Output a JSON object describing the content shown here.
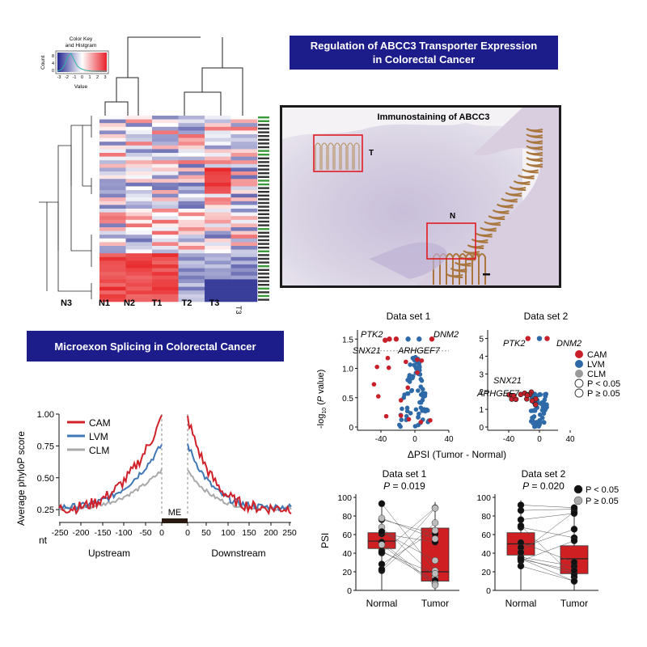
{
  "banners": {
    "abcc3": "Regulation of ABCC3 Transporter Expression\nin Colorectal Cancer",
    "microexon": "Microexon Splicing in Colorectal Cancer"
  },
  "heatmap": {
    "color_key_title": "Color Key\nand Histgram",
    "count_label": "Count",
    "value_label": "Value",
    "key_ticks": [
      "-3",
      "-2",
      "-1",
      "0",
      "1",
      "2",
      "3"
    ],
    "count_ticks": [
      "0",
      "4",
      "8"
    ],
    "columns": [
      "N3",
      "N1",
      "N2",
      "T1",
      "T2",
      "T3"
    ],
    "rotated_column": "T3",
    "colors": {
      "high": "#e8202a",
      "low": "#23288f",
      "mid": "#ffffff"
    }
  },
  "ihc": {
    "title": "Immunostaining of ABCC3",
    "region_labels": [
      "T",
      "N"
    ],
    "box_color": "#e01b22"
  },
  "phylop": {
    "ylabel": "Average phyloP score",
    "yticks": [
      "0.25",
      "0.50",
      "0.75",
      "1.00"
    ],
    "xprefix": "nt",
    "xticks": [
      "-250",
      "-200",
      "-150",
      "-100",
      "-50",
      "0",
      "0",
      "50",
      "100",
      "150",
      "200",
      "250"
    ],
    "exon_label": "ME",
    "upstream": "Upstream",
    "downstream": "Downstream",
    "legend": [
      {
        "name": "CAM",
        "color": "#d0202a"
      },
      {
        "name": "LVM",
        "color": "#3f78b5"
      },
      {
        "name": "CLM",
        "color": "#a9a9a9"
      }
    ]
  },
  "volcano": {
    "titles": [
      "Data set 1",
      "Data set 2"
    ],
    "ylabel": "-log10 (P value)",
    "xlabel": "ΔPSI (Tumor - Normal)",
    "ds1_yticks": [
      "0",
      "0.5",
      "1.0",
      "1.5"
    ],
    "ds2_yticks": [
      "0",
      "1",
      "2",
      "3",
      "4",
      "5"
    ],
    "xticks": [
      "-40",
      "0",
      "40"
    ],
    "ds2_xticks": [
      "-40",
      "0",
      "40"
    ],
    "genes_ds1": [
      "PTK2",
      "DNM2",
      "SNX21",
      "ARHGEF7"
    ],
    "genes_ds2": [
      "PTK2",
      "DNM2",
      "SNX21",
      "ARHGEF7"
    ],
    "legend": [
      "CAM",
      "LVM",
      "CLM",
      "P < 0.05",
      "P ≥ 0.05"
    ],
    "legend_colors": [
      "#c8202a",
      "#2f6aa8",
      "#9a9a9a",
      "#ffffff",
      "#ffffff"
    ]
  },
  "boxplots": {
    "titles": [
      "Data set 1",
      "Data set 2"
    ],
    "pvalues": [
      "P = 0.019",
      "P = 0.020"
    ],
    "ylabel": "PSI",
    "yticks": [
      "0",
      "20",
      "40",
      "60",
      "80",
      "100"
    ],
    "groups": [
      "Normal",
      "Tumor"
    ],
    "legend": [
      "P < 0.05",
      "P ≥ 0.05"
    ],
    "box_color": "#d01f23"
  }
}
